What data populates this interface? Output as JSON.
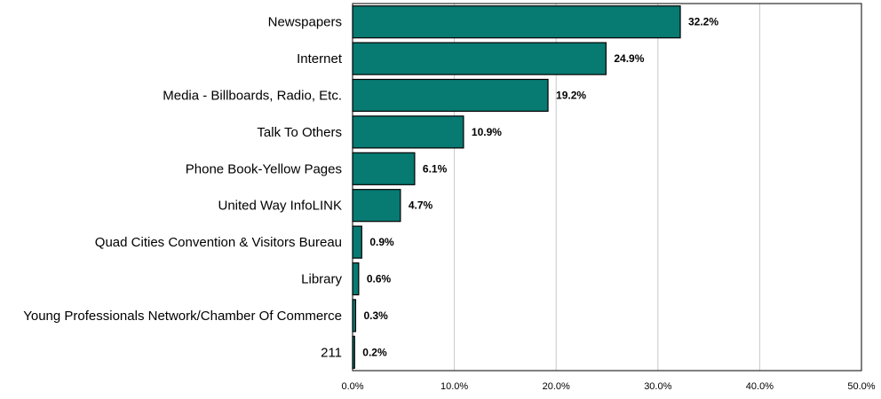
{
  "chart_data": {
    "type": "bar",
    "orientation": "horizontal",
    "categories": [
      "Newspapers",
      "Internet",
      "Media - Billboards, Radio, Etc.",
      "Talk To Others",
      "Phone Book-Yellow Pages",
      "United Way InfoLINK",
      "Quad Cities Convention & Visitors Bureau",
      "Library",
      "Young Professionals Network/Chamber Of Commerce",
      "211"
    ],
    "values": [
      32.2,
      24.9,
      19.2,
      10.9,
      6.1,
      4.7,
      0.9,
      0.6,
      0.3,
      0.2
    ],
    "value_labels": [
      "32.2%",
      "24.9%",
      "19.2%",
      "10.9%",
      "6.1%",
      "4.7%",
      "0.9%",
      "0.6%",
      "0.3%",
      "0.2%"
    ],
    "x_ticks": [
      "0.0%",
      "10.0%",
      "20.0%",
      "30.0%",
      "40.0%",
      "50.0%"
    ],
    "xlim": [
      0,
      50
    ],
    "title": "",
    "xlabel": "",
    "ylabel": "",
    "grid": "vertical",
    "legend": "none",
    "colors": {
      "bar": "#077A72",
      "bar_stroke": "#000000",
      "grid": "#C8C8C8"
    }
  }
}
